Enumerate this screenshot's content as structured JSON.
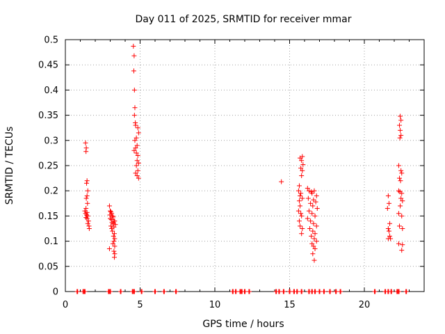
{
  "chart_data": {
    "type": "scatter",
    "title": "Day 011 of 2025, SRMTID for receiver mmar",
    "xlabel": "GPS time / hours",
    "ylabel": "SRMTID / TECUs",
    "xlim": [
      0,
      24
    ],
    "ylim": [
      0,
      0.5
    ],
    "xticks": [
      0,
      5,
      10,
      15,
      20
    ],
    "xtick_labels": [
      "0",
      "5",
      "10",
      "15",
      "20"
    ],
    "yticks": [
      0,
      0.05,
      0.1,
      0.15,
      0.2,
      0.25,
      0.3,
      0.35,
      0.4,
      0.45,
      0.5
    ],
    "ytick_labels": [
      "0",
      "0.05",
      "0.1",
      "0.15",
      "0.2",
      "0.25",
      "0.3",
      "0.35",
      "0.4",
      "0.45",
      "0.5"
    ],
    "grid": true,
    "marker": "+",
    "color": "#ff0000",
    "series": [
      {
        "name": "SRMTID",
        "points": [
          [
            1.35,
            0.295
          ],
          [
            1.4,
            0.285
          ],
          [
            1.38,
            0.278
          ],
          [
            1.45,
            0.22
          ],
          [
            1.42,
            0.215
          ],
          [
            1.5,
            0.2
          ],
          [
            1.45,
            0.19
          ],
          [
            1.4,
            0.185
          ],
          [
            1.48,
            0.175
          ],
          [
            1.38,
            0.165
          ],
          [
            1.3,
            0.16
          ],
          [
            1.45,
            0.157
          ],
          [
            1.35,
            0.155
          ],
          [
            1.42,
            0.152
          ],
          [
            1.5,
            0.15
          ],
          [
            1.38,
            0.147
          ],
          [
            1.45,
            0.145
          ],
          [
            1.55,
            0.14
          ],
          [
            1.5,
            0.135
          ],
          [
            1.58,
            0.13
          ],
          [
            1.6,
            0.125
          ],
          [
            2.95,
            0.17
          ],
          [
            3.0,
            0.16
          ],
          [
            3.05,
            0.158
          ],
          [
            3.1,
            0.155
          ],
          [
            2.98,
            0.152
          ],
          [
            3.15,
            0.15
          ],
          [
            3.2,
            0.148
          ],
          [
            3.0,
            0.145
          ],
          [
            3.08,
            0.143
          ],
          [
            3.25,
            0.14
          ],
          [
            3.3,
            0.14
          ],
          [
            3.12,
            0.137
          ],
          [
            3.2,
            0.135
          ],
          [
            3.35,
            0.133
          ],
          [
            3.05,
            0.13
          ],
          [
            3.25,
            0.128
          ],
          [
            3.1,
            0.125
          ],
          [
            3.15,
            0.12
          ],
          [
            3.28,
            0.115
          ],
          [
            3.22,
            0.11
          ],
          [
            3.3,
            0.105
          ],
          [
            3.25,
            0.1
          ],
          [
            3.18,
            0.095
          ],
          [
            3.3,
            0.09
          ],
          [
            2.95,
            0.085
          ],
          [
            3.25,
            0.08
          ],
          [
            3.3,
            0.075
          ],
          [
            3.28,
            0.068
          ],
          [
            4.55,
            0.487
          ],
          [
            4.6,
            0.468
          ],
          [
            4.58,
            0.438
          ],
          [
            4.62,
            0.4
          ],
          [
            4.65,
            0.365
          ],
          [
            4.62,
            0.35
          ],
          [
            4.68,
            0.335
          ],
          [
            4.7,
            0.33
          ],
          [
            4.85,
            0.325
          ],
          [
            4.9,
            0.315
          ],
          [
            4.75,
            0.305
          ],
          [
            4.65,
            0.3
          ],
          [
            4.8,
            0.29
          ],
          [
            4.7,
            0.285
          ],
          [
            4.6,
            0.28
          ],
          [
            4.75,
            0.275
          ],
          [
            4.85,
            0.27
          ],
          [
            4.8,
            0.26
          ],
          [
            4.9,
            0.255
          ],
          [
            4.75,
            0.25
          ],
          [
            4.85,
            0.24
          ],
          [
            4.7,
            0.235
          ],
          [
            4.8,
            0.23
          ],
          [
            4.9,
            0.225
          ],
          [
            14.45,
            0.218
          ],
          [
            15.7,
            0.265
          ],
          [
            15.85,
            0.268
          ],
          [
            15.8,
            0.26
          ],
          [
            15.9,
            0.252
          ],
          [
            15.75,
            0.245
          ],
          [
            15.85,
            0.24
          ],
          [
            15.8,
            0.23
          ],
          [
            15.65,
            0.21
          ],
          [
            15.6,
            0.2
          ],
          [
            15.75,
            0.195
          ],
          [
            15.7,
            0.19
          ],
          [
            15.85,
            0.185
          ],
          [
            15.65,
            0.18
          ],
          [
            15.7,
            0.17
          ],
          [
            15.6,
            0.16
          ],
          [
            15.75,
            0.155
          ],
          [
            15.8,
            0.15
          ],
          [
            15.65,
            0.14
          ],
          [
            15.7,
            0.13
          ],
          [
            15.85,
            0.125
          ],
          [
            15.8,
            0.115
          ],
          [
            16.2,
            0.205
          ],
          [
            16.3,
            0.2
          ],
          [
            16.45,
            0.198
          ],
          [
            16.5,
            0.195
          ],
          [
            16.65,
            0.2
          ],
          [
            16.8,
            0.19
          ],
          [
            16.25,
            0.185
          ],
          [
            16.6,
            0.182
          ],
          [
            16.75,
            0.178
          ],
          [
            16.4,
            0.175
          ],
          [
            16.55,
            0.17
          ],
          [
            16.85,
            0.165
          ],
          [
            16.3,
            0.16
          ],
          [
            16.5,
            0.155
          ],
          [
            16.7,
            0.15
          ],
          [
            16.2,
            0.145
          ],
          [
            16.4,
            0.14
          ],
          [
            16.6,
            0.135
          ],
          [
            16.8,
            0.13
          ],
          [
            16.35,
            0.125
          ],
          [
            16.55,
            0.12
          ],
          [
            16.7,
            0.115
          ],
          [
            16.45,
            0.11
          ],
          [
            16.65,
            0.105
          ],
          [
            16.8,
            0.1
          ],
          [
            16.5,
            0.095
          ],
          [
            16.6,
            0.09
          ],
          [
            16.7,
            0.085
          ],
          [
            16.55,
            0.075
          ],
          [
            16.65,
            0.062
          ],
          [
            21.6,
            0.19
          ],
          [
            21.65,
            0.175
          ],
          [
            21.55,
            0.165
          ],
          [
            21.7,
            0.135
          ],
          [
            21.6,
            0.125
          ],
          [
            21.65,
            0.12
          ],
          [
            21.7,
            0.11
          ],
          [
            21.6,
            0.105
          ],
          [
            21.75,
            0.105
          ],
          [
            22.4,
            0.348
          ],
          [
            22.45,
            0.34
          ],
          [
            22.35,
            0.33
          ],
          [
            22.4,
            0.32
          ],
          [
            22.45,
            0.31
          ],
          [
            22.38,
            0.305
          ],
          [
            22.3,
            0.25
          ],
          [
            22.45,
            0.24
          ],
          [
            22.5,
            0.235
          ],
          [
            22.35,
            0.225
          ],
          [
            22.42,
            0.22
          ],
          [
            22.3,
            0.2
          ],
          [
            22.38,
            0.198
          ],
          [
            22.5,
            0.195
          ],
          [
            22.45,
            0.185
          ],
          [
            22.55,
            0.18
          ],
          [
            22.4,
            0.17
          ],
          [
            22.3,
            0.155
          ],
          [
            22.5,
            0.15
          ],
          [
            22.35,
            0.13
          ],
          [
            22.55,
            0.125
          ],
          [
            22.3,
            0.095
          ],
          [
            22.55,
            0.093
          ],
          [
            22.5,
            0.082
          ]
        ],
        "zero_points": [
          0.8,
          1.2,
          1.3,
          2.9,
          3.0,
          3.7,
          4.5,
          4.6,
          5.1,
          6.0,
          6.6,
          7.4,
          11.2,
          11.4,
          11.7,
          11.8,
          12.0,
          12.3,
          14.1,
          14.3,
          14.6,
          15.0,
          15.3,
          15.5,
          15.8,
          16.3,
          16.5,
          16.7,
          17.0,
          17.3,
          17.7,
          18.1,
          18.4,
          20.7,
          21.4,
          21.6,
          21.8,
          22.2,
          22.3,
          22.8
        ]
      }
    ]
  }
}
